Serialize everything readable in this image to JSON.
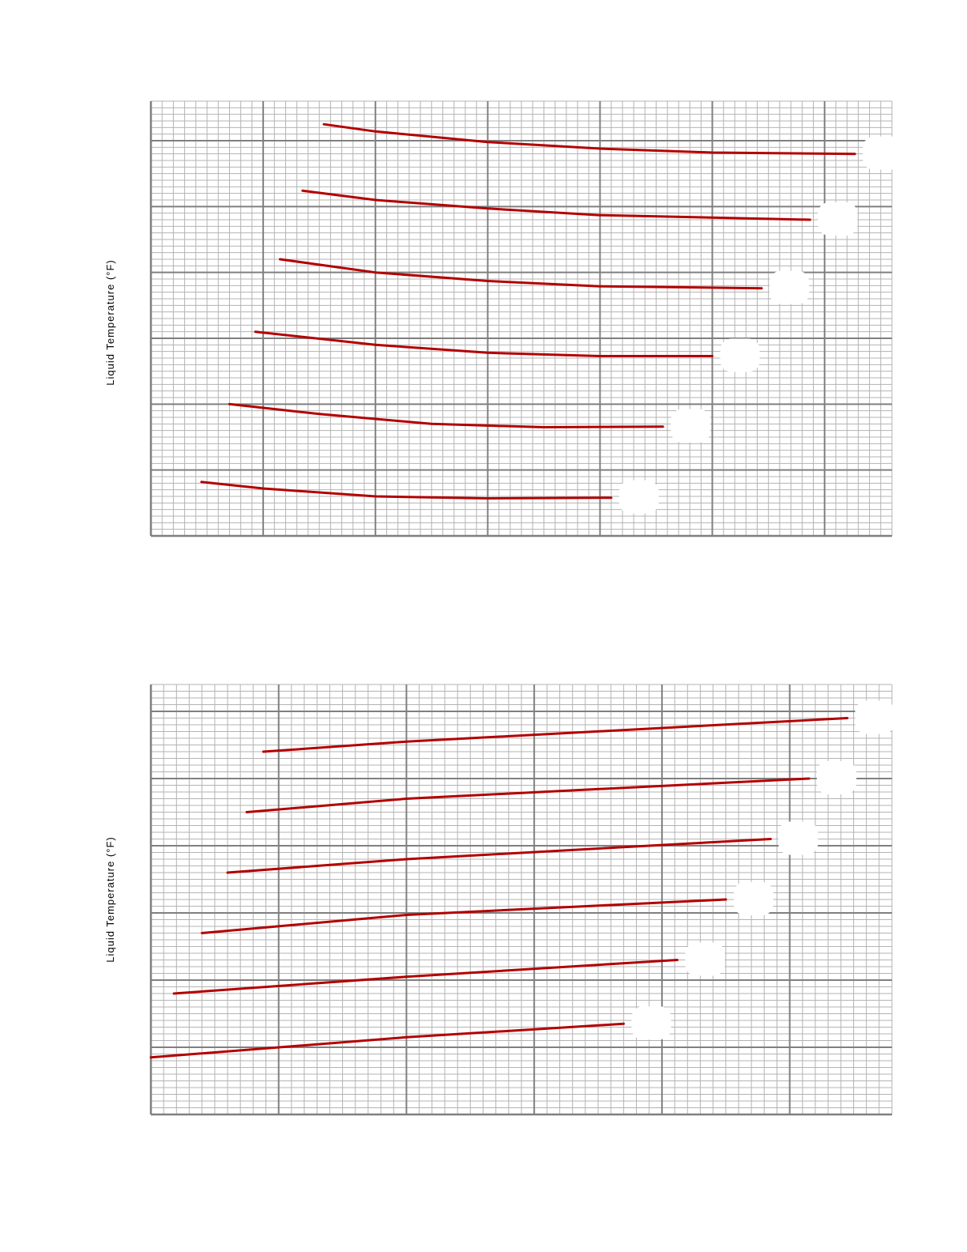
{
  "colors": {
    "series": "#b30000",
    "grid_major": "#7f7f7f",
    "grid_minor": "#b3b3b3",
    "background": "#ffffff"
  },
  "chart_data": [
    {
      "type": "line",
      "title": "",
      "xlabel": "",
      "ylabel": "Liquid Temperature (°F)",
      "xlim": [
        0,
        6.6
      ],
      "ylim": [
        0,
        6.6
      ],
      "grid": true,
      "legend": "none",
      "series": [
        {
          "points": [
            [
              0.45,
              0.82
            ],
            [
              1.0,
              0.72
            ],
            [
              2.0,
              0.6
            ],
            [
              3.0,
              0.57
            ],
            [
              4.0,
              0.58
            ],
            [
              4.1,
              0.58
            ]
          ]
        },
        {
          "points": [
            [
              0.7,
              2.0
            ],
            [
              1.5,
              1.85
            ],
            [
              2.5,
              1.7
            ],
            [
              3.5,
              1.65
            ],
            [
              4.56,
              1.66
            ]
          ]
        },
        {
          "points": [
            [
              0.93,
              3.1
            ],
            [
              2.0,
              2.9
            ],
            [
              3.0,
              2.78
            ],
            [
              4.0,
              2.73
            ],
            [
              5.0,
              2.73
            ],
            [
              5.0,
              2.73
            ]
          ]
        },
        {
          "points": [
            [
              1.15,
              4.2
            ],
            [
              2.0,
              4.0
            ],
            [
              3.0,
              3.87
            ],
            [
              4.0,
              3.79
            ],
            [
              5.44,
              3.76
            ]
          ]
        },
        {
          "points": [
            [
              1.35,
              5.24
            ],
            [
              2.0,
              5.1
            ],
            [
              3.0,
              4.97
            ],
            [
              4.0,
              4.87
            ],
            [
              5.87,
              4.8
            ]
          ]
        },
        {
          "points": [
            [
              1.54,
              6.25
            ],
            [
              2.0,
              6.14
            ],
            [
              3.0,
              5.98
            ],
            [
              4.0,
              5.88
            ],
            [
              5.0,
              5.82
            ],
            [
              6.27,
              5.8
            ]
          ]
        }
      ]
    },
    {
      "type": "line",
      "title": "",
      "xlabel": "",
      "ylabel": "Liquid Temperature (°F)",
      "xlim": [
        0,
        5.8
      ],
      "ylim": [
        0,
        6.4
      ],
      "grid": true,
      "legend": "none",
      "series": [
        {
          "points": [
            [
              0.0,
              0.85
            ],
            [
              2.0,
              1.15
            ],
            [
              3.7,
              1.35
            ]
          ]
        },
        {
          "points": [
            [
              0.18,
              1.8
            ],
            [
              2.0,
              2.05
            ],
            [
              4.12,
              2.3
            ]
          ]
        },
        {
          "points": [
            [
              0.4,
              2.7
            ],
            [
              2.0,
              2.97
            ],
            [
              4.5,
              3.2
            ]
          ]
        },
        {
          "points": [
            [
              0.6,
              3.6
            ],
            [
              2.0,
              3.8
            ],
            [
              4.85,
              4.1
            ]
          ]
        },
        {
          "points": [
            [
              0.75,
              4.5
            ],
            [
              2.0,
              4.7
            ],
            [
              5.15,
              5.0
            ]
          ]
        },
        {
          "points": [
            [
              0.88,
              5.4
            ],
            [
              2.0,
              5.55
            ],
            [
              5.45,
              5.9
            ]
          ]
        }
      ]
    }
  ]
}
